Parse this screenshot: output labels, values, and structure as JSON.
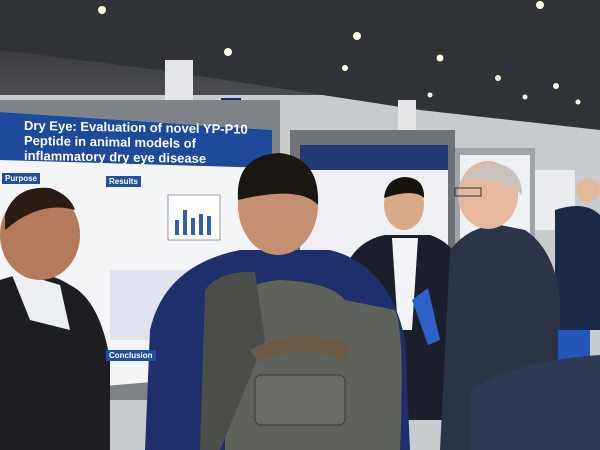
{
  "poster": {
    "title": "Dry Eye: Evaluation of novel YP-P10 Peptide in animal models of inflammatory dry eye disease",
    "sections": [
      "Purpose",
      "Results",
      "Conclusion"
    ]
  }
}
